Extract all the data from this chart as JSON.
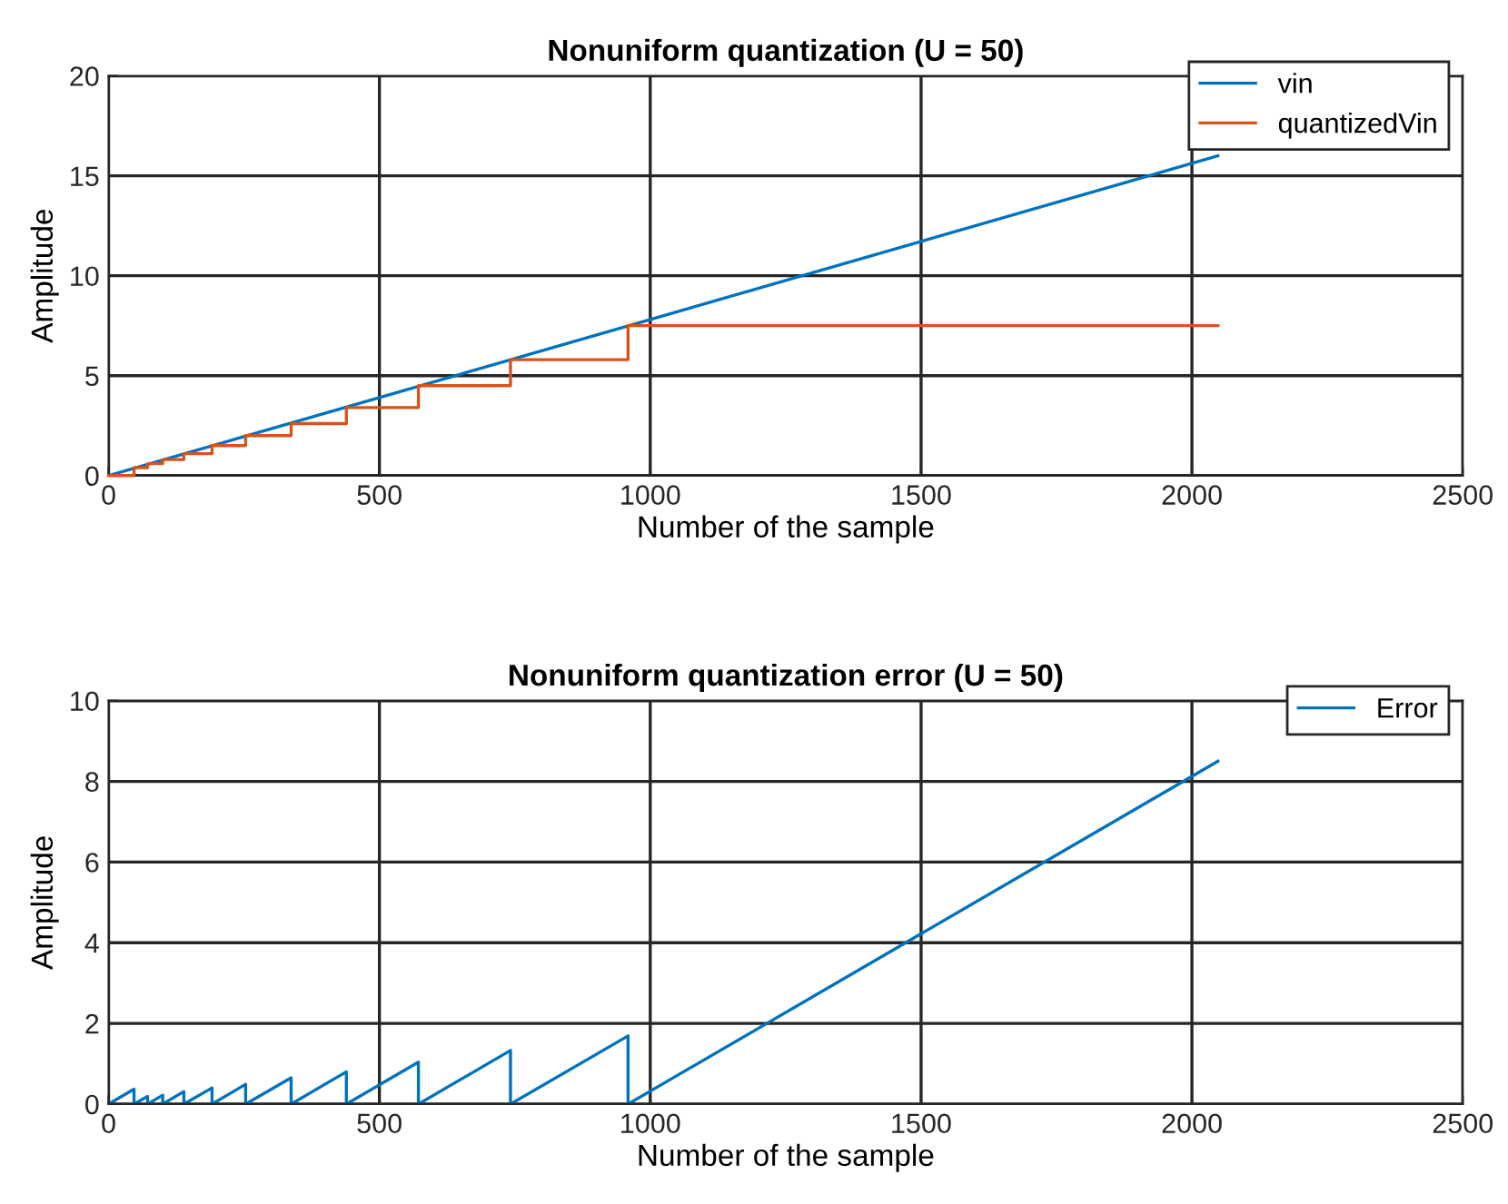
{
  "chart_data": [
    {
      "type": "line",
      "title": "Nonuniform quantization (U = 50)",
      "xlabel": "Number of the sample",
      "ylabel": "Amplitude",
      "xlim": [
        0,
        2500
      ],
      "ylim": [
        0,
        20
      ],
      "xticks": [
        0,
        500,
        1000,
        1500,
        2000,
        2500
      ],
      "yticks": [
        0,
        5,
        10,
        15,
        20
      ],
      "grid": true,
      "legend": "top right",
      "series": [
        {
          "name": "vin",
          "color": "#0072bd",
          "x": [
            0,
            2048
          ],
          "values": [
            0,
            16
          ]
        },
        {
          "name": "quantizedVin",
          "color": "#d95319",
          "type": "step",
          "x": [
            0,
            47,
            72,
            100,
            139,
            191,
            253,
            337,
            439,
            572,
            742,
            959,
            2048
          ],
          "values": [
            0,
            0.4,
            0.6,
            0.8,
            1.1,
            1.5,
            2.0,
            2.6,
            3.4,
            4.5,
            5.8,
            7.5,
            7.5
          ]
        }
      ]
    },
    {
      "type": "line",
      "title": "Nonuniform quantization error (U = 50)",
      "xlabel": "Number of the sample",
      "ylabel": "Amplitude",
      "xlim": [
        0,
        2500
      ],
      "ylim": [
        0,
        10
      ],
      "xticks": [
        0,
        500,
        1000,
        1500,
        2000,
        2500
      ],
      "yticks": [
        0,
        2,
        4,
        6,
        8,
        10
      ],
      "grid": true,
      "legend": "top right",
      "series": [
        {
          "name": "Error",
          "color": "#0072bd",
          "x": [
            0,
            47,
            47,
            72,
            72,
            100,
            100,
            139,
            139,
            191,
            191,
            253,
            253,
            337,
            337,
            439,
            439,
            572,
            572,
            742,
            742,
            959,
            959,
            2048
          ],
          "values": [
            0,
            0.37,
            0,
            0.19,
            0,
            0.22,
            0,
            0.31,
            0,
            0.4,
            0,
            0.49,
            0,
            0.65,
            0,
            0.8,
            0,
            1.04,
            0,
            1.33,
            0,
            1.69,
            0,
            8.5
          ]
        }
      ]
    }
  ]
}
